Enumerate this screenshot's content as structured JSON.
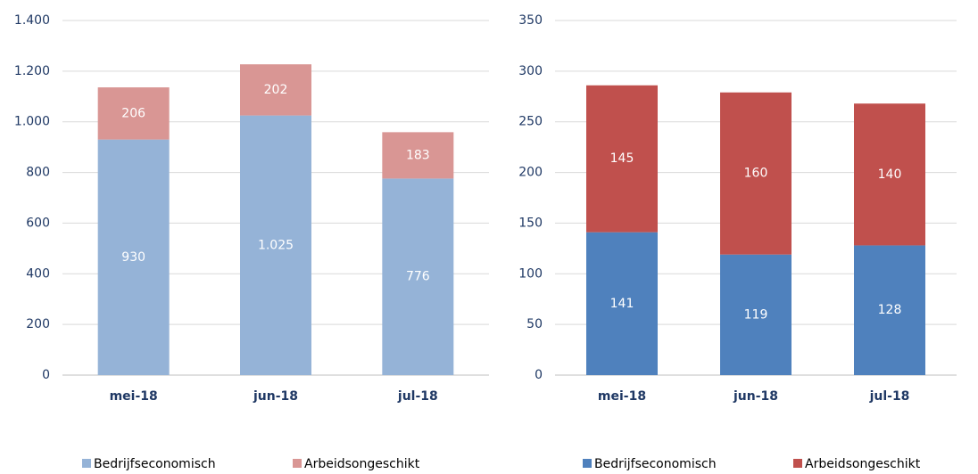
{
  "chart_data": [
    {
      "type": "stacked_bar",
      "categories": [
        "mei-18",
        "jun-18",
        "jul-18"
      ],
      "series": [
        {
          "name": "Bedrijfseconomisch",
          "color": "#95b3d7",
          "values": [
            930,
            1025,
            776
          ],
          "value_labels": [
            "930",
            "1.025",
            "776"
          ]
        },
        {
          "name": "Arbeidsongeschikt",
          "color": "#d99694",
          "values": [
            206,
            202,
            183
          ]
        }
      ],
      "ylim": [
        0,
        1400
      ],
      "yticks": [
        0,
        200,
        400,
        600,
        800,
        {
          "value": 1000,
          "label": "1.000"
        },
        {
          "value": 1200,
          "label": "1.200"
        },
        {
          "value": 1400,
          "label": "1.400"
        }
      ],
      "grid": true,
      "legend": "bottom"
    },
    {
      "type": "stacked_bar",
      "categories": [
        "mei-18",
        "jun-18",
        "jul-18"
      ],
      "series": [
        {
          "name": "Bedrijfseconomisch",
          "color": "#4f81bd",
          "values": [
            141,
            119,
            128
          ]
        },
        {
          "name": "Arbeidsongeschikt",
          "color": "#c0504d",
          "values": [
            145,
            160,
            140
          ]
        }
      ],
      "ylim": [
        0,
        350
      ],
      "yticks": [
        0,
        50,
        100,
        150,
        200,
        250,
        300,
        350
      ],
      "grid": true,
      "legend": "bottom"
    }
  ]
}
